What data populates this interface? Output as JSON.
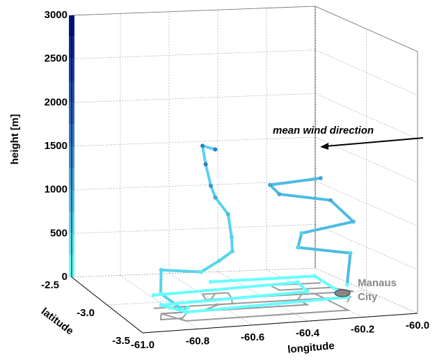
{
  "chart_data": {
    "type": "line3d",
    "xlabel": "longitude",
    "ylabel": "latitude",
    "zlabel": "height [m]",
    "xlim": [
      -61,
      -60
    ],
    "xticks": [
      {
        "value": -61,
        "label": "-61.0"
      },
      -60.8,
      -60.6,
      -60.4,
      -60.2,
      {
        "value": -60,
        "label": "-60.0"
      }
    ],
    "ylim": [
      -2.5,
      -3.5
    ],
    "yticks": [
      -2.5,
      {
        "value": -3,
        "label": "-3.0"
      },
      -3.5
    ],
    "zlim": [
      0,
      3000
    ],
    "zticks": [
      0,
      500,
      1000,
      1500,
      2000,
      2500,
      3000
    ],
    "grid": true,
    "shadow_color": "#999999",
    "colorbar": [
      "#66ffff",
      "#5eeaf5",
      "#56d4ec",
      "#4dbce3",
      "#45a6da",
      "#3d8fd0",
      "#3578c6",
      "#2d62bb",
      "#2450b0",
      "#1b3ca4",
      "#122896",
      "#081488"
    ],
    "series": [
      {
        "lon": [
          -60.55,
          -60.6,
          -60.62,
          -60.6,
          -60.55,
          -60.5,
          -60.52,
          -60.55,
          -60.6,
          -60.7,
          -60.85,
          -60.88,
          -60.8,
          -60.75
        ],
        "lat": [
          -2.9,
          -2.9,
          -3.0,
          -3.0,
          -2.9,
          -2.9,
          -3.0,
          -3.1,
          -3.1,
          -3.2,
          -3.2,
          -3.3,
          -3.3,
          -3.2
        ],
        "height": [
          1650,
          1700,
          1550,
          1300,
          1100,
          900,
          700,
          600,
          500,
          450,
          500,
          300,
          100,
          50
        ]
      },
      {
        "lon": [
          -60.1,
          -60.3,
          -60.3,
          -60.1,
          -60.05,
          -60.25,
          -60.3,
          -60.1,
          -60.15
        ],
        "lat": [
          -2.8,
          -2.8,
          -2.9,
          -2.9,
          -3.0,
          -3.0,
          -3.1,
          -3.1,
          -3.2
        ],
        "height": [
          1200,
          1150,
          1100,
          1000,
          800,
          700,
          600,
          500,
          200
        ]
      },
      {
        "lon": [
          -60.85,
          -60.3,
          -60.3,
          -60.85,
          -60.8,
          -60.2,
          -60.2,
          -60.6
        ],
        "lat": [
          -3.1,
          -3.1,
          -3.2,
          -3.2,
          -3.35,
          -3.35,
          -3.0,
          -3.0
        ],
        "height": [
          150,
          200,
          150,
          100,
          100,
          150,
          200,
          200
        ]
      }
    ],
    "annotations": [
      {
        "text": "mean wind direction"
      },
      {
        "label_lines": [
          "Manaus",
          "City"
        ],
        "color": "#888888"
      }
    ]
  }
}
